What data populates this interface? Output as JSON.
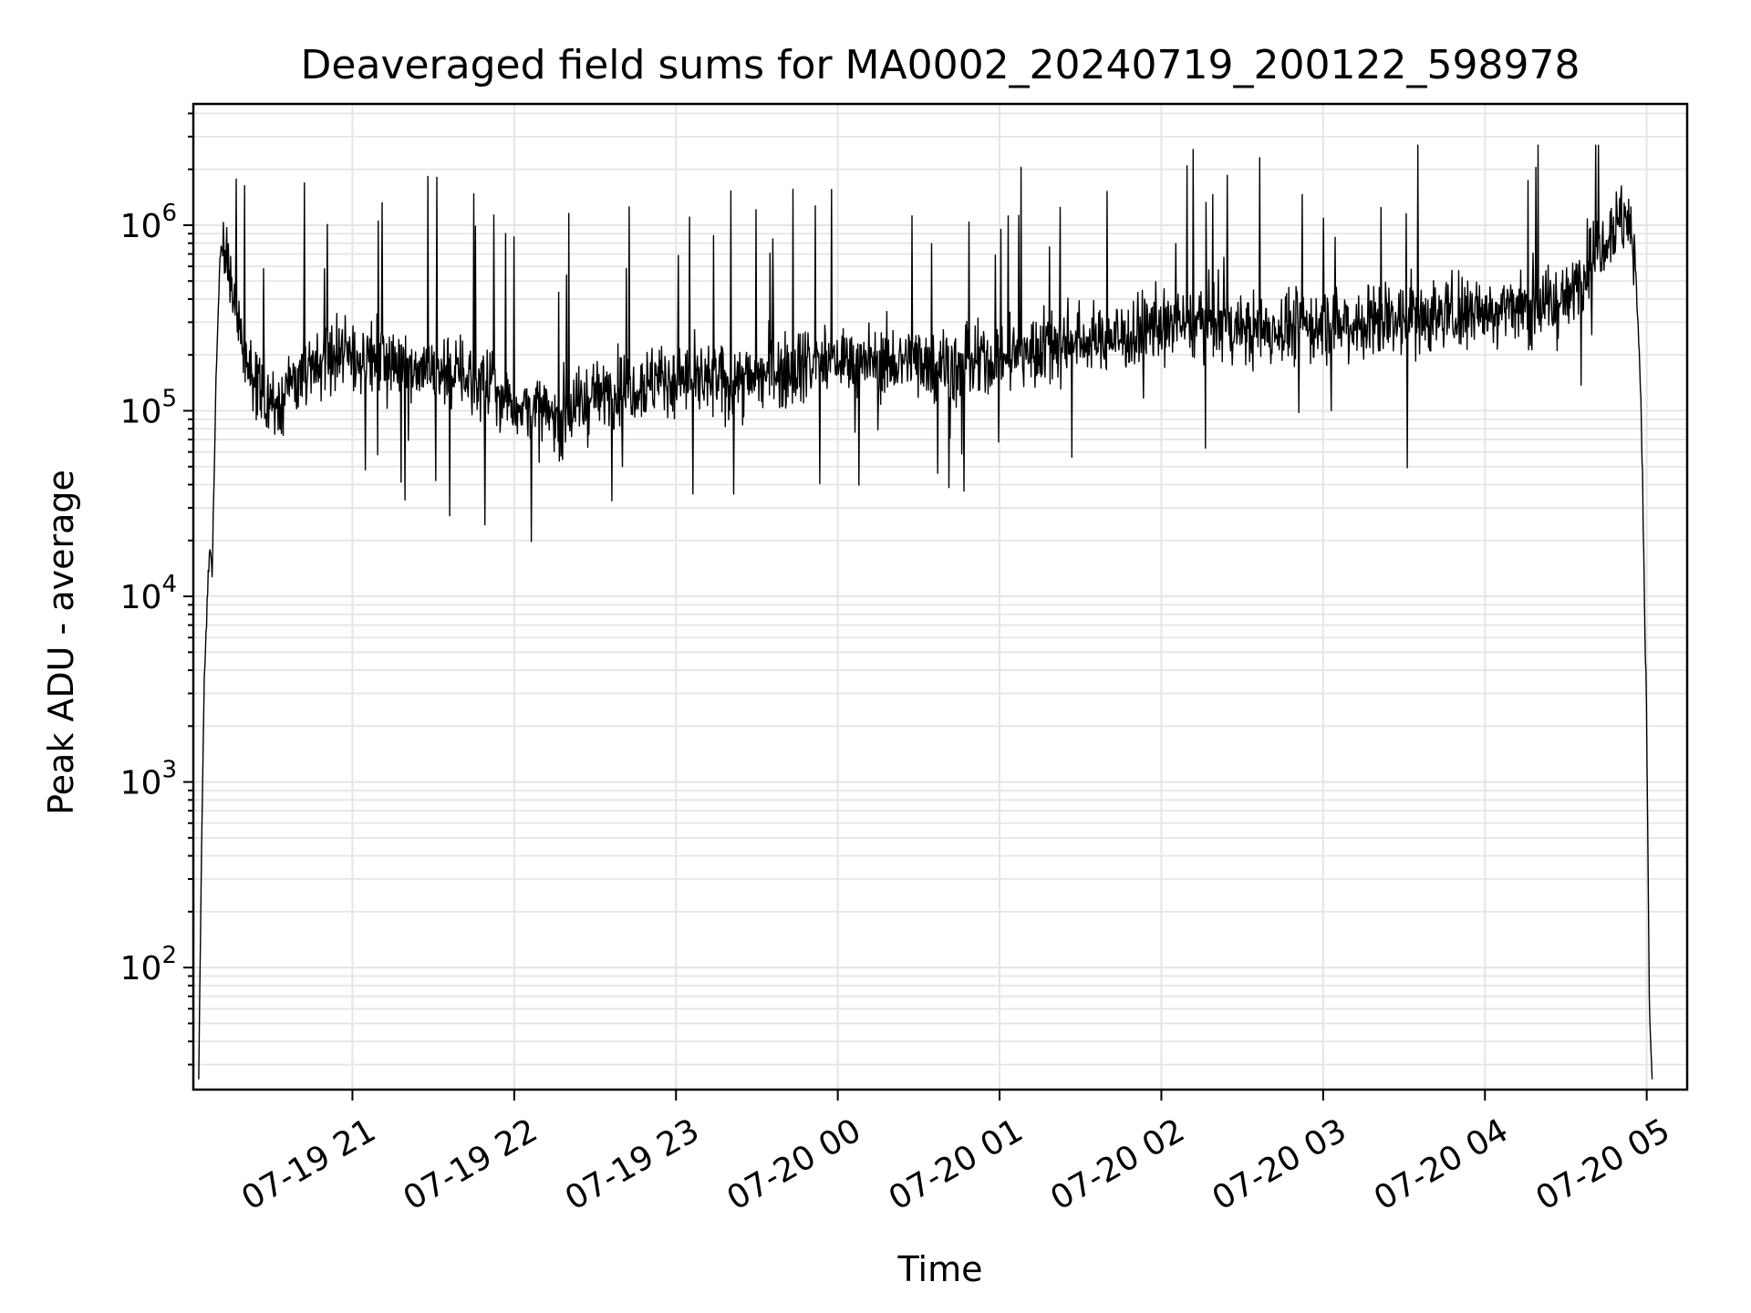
{
  "chart_data": {
    "type": "line",
    "title": "Deaveraged field sums for MA0002_20240719_200122_598978",
    "xlabel": "Time",
    "ylabel": "Peak ADU - average",
    "yscale": "log",
    "ylim": [
      22,
      4500000
    ],
    "xlim": [
      "2024-07-19 20:01",
      "2024-07-20 05:15"
    ],
    "grid": true,
    "line_color": "#000000",
    "grid_color": "#e5e5e5",
    "x_ticks": [
      {
        "t": "2024-07-19 21:00",
        "label": "07-19 21"
      },
      {
        "t": "2024-07-19 22:00",
        "label": "07-19 22"
      },
      {
        "t": "2024-07-19 23:00",
        "label": "07-19 23"
      },
      {
        "t": "2024-07-20 00:00",
        "label": "07-20 00"
      },
      {
        "t": "2024-07-20 01:00",
        "label": "07-20 01"
      },
      {
        "t": "2024-07-20 02:00",
        "label": "07-20 02"
      },
      {
        "t": "2024-07-20 03:00",
        "label": "07-20 03"
      },
      {
        "t": "2024-07-20 04:00",
        "label": "07-20 04"
      },
      {
        "t": "2024-07-20 05:00",
        "label": "07-20 05"
      }
    ],
    "y_ticks": [
      {
        "value": 100,
        "base": "10",
        "exp": "2"
      },
      {
        "value": 1000,
        "base": "10",
        "exp": "3"
      },
      {
        "value": 10000,
        "base": "10",
        "exp": "4"
      },
      {
        "value": 100000,
        "base": "10",
        "exp": "5"
      },
      {
        "value": 1000000,
        "base": "10",
        "exp": "6"
      }
    ],
    "series": [
      {
        "x": [
          "2024-07-19 20:03",
          "2024-07-19 20:04",
          "2024-07-19 20:05",
          "2024-07-19 20:06",
          "2024-07-19 20:07",
          "2024-07-19 20:08",
          "2024-07-19 20:09",
          "2024-07-19 20:10",
          "2024-07-19 20:11",
          "2024-07-19 20:12",
          "2024-07-19 20:13",
          "2024-07-19 20:15",
          "2024-07-19 20:17",
          "2024-07-19 20:20",
          "2024-07-19 20:25",
          "2024-07-19 20:30",
          "2024-07-19 20:40",
          "2024-07-19 20:50",
          "2024-07-19 21:00",
          "2024-07-19 21:15",
          "2024-07-19 21:30",
          "2024-07-19 21:45",
          "2024-07-19 22:00",
          "2024-07-19 22:15",
          "2024-07-19 22:30",
          "2024-07-19 22:45",
          "2024-07-19 23:00",
          "2024-07-19 23:15",
          "2024-07-19 23:30",
          "2024-07-19 23:45",
          "2024-07-20 00:00",
          "2024-07-20 00:15",
          "2024-07-20 00:30",
          "2024-07-20 00:45",
          "2024-07-20 01:00",
          "2024-07-20 01:15",
          "2024-07-20 01:30",
          "2024-07-20 01:45",
          "2024-07-20 02:00",
          "2024-07-20 02:15",
          "2024-07-20 02:30",
          "2024-07-20 02:45",
          "2024-07-20 03:00",
          "2024-07-20 03:15",
          "2024-07-20 03:30",
          "2024-07-20 03:45",
          "2024-07-20 04:00",
          "2024-07-20 04:15",
          "2024-07-20 04:30",
          "2024-07-20 04:40",
          "2024-07-20 04:45",
          "2024-07-20 04:50",
          "2024-07-20 04:53",
          "2024-07-20 04:56",
          "2024-07-20 04:58",
          "2024-07-20 05:00",
          "2024-07-20 05:01",
          "2024-07-20 05:02"
        ],
        "y": [
          25,
          400,
          3000,
          8000,
          20000,
          12000,
          80000,
          300000,
          700000,
          800000,
          650000,
          500000,
          350000,
          200000,
          120000,
          110000,
          150000,
          180000,
          200000,
          180000,
          170000,
          150000,
          110000,
          90000,
          120000,
          140000,
          150000,
          140000,
          150000,
          180000,
          190000,
          180000,
          190000,
          170000,
          190000,
          220000,
          240000,
          250000,
          280000,
          300000,
          270000,
          280000,
          290000,
          300000,
          320000,
          330000,
          350000,
          370000,
          380000,
          700000,
          900000,
          1100000,
          1000000,
          600000,
          100000,
          2000,
          60,
          25
        ]
      }
    ]
  }
}
